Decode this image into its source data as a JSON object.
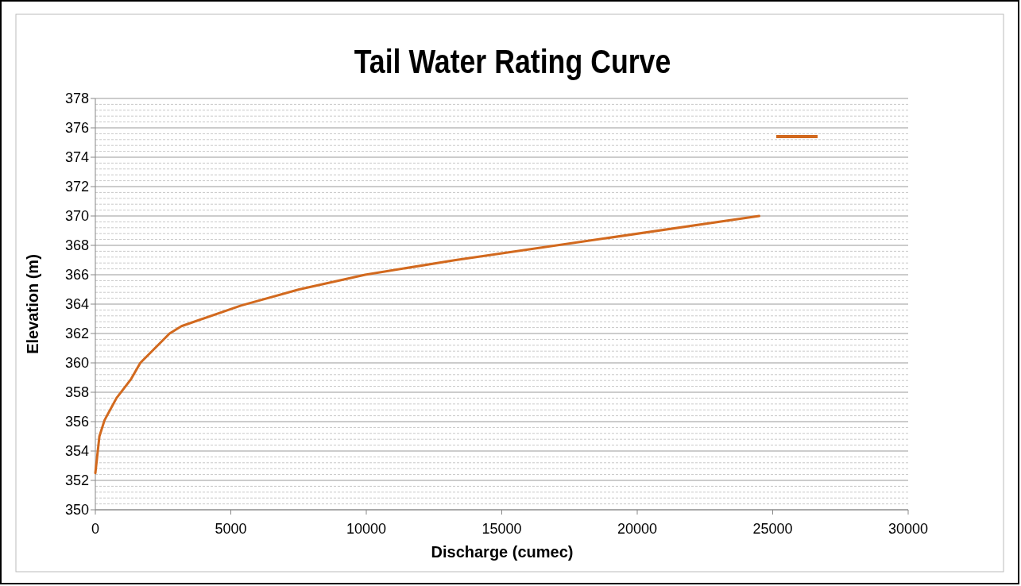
{
  "chart_data": {
    "type": "line",
    "title": "Tail Water Rating Curve",
    "xlabel": "Discharge (cumec)",
    "ylabel": "Elevation (m)",
    "x": [
      0,
      150,
      340,
      780,
      1320,
      1660,
      2740,
      3180,
      5370,
      7520,
      9960,
      13300,
      24500
    ],
    "series": [
      {
        "color": "#d2691e",
        "values": [
          352.5,
          355.0,
          356.1,
          357.6,
          358.9,
          360.0,
          362.0,
          362.5,
          363.9,
          365.0,
          366.0,
          367.0,
          370.0
        ]
      }
    ],
    "xlim": [
      0,
      30000
    ],
    "xticks": [
      0,
      5000,
      10000,
      15000,
      20000,
      25000,
      30000
    ],
    "ylim": [
      350,
      378
    ],
    "yticks": [
      350,
      352,
      354,
      356,
      358,
      360,
      362,
      364,
      366,
      368,
      370,
      372,
      374,
      376,
      378
    ],
    "grid": "y",
    "marker": "none",
    "line_style": "solid"
  }
}
